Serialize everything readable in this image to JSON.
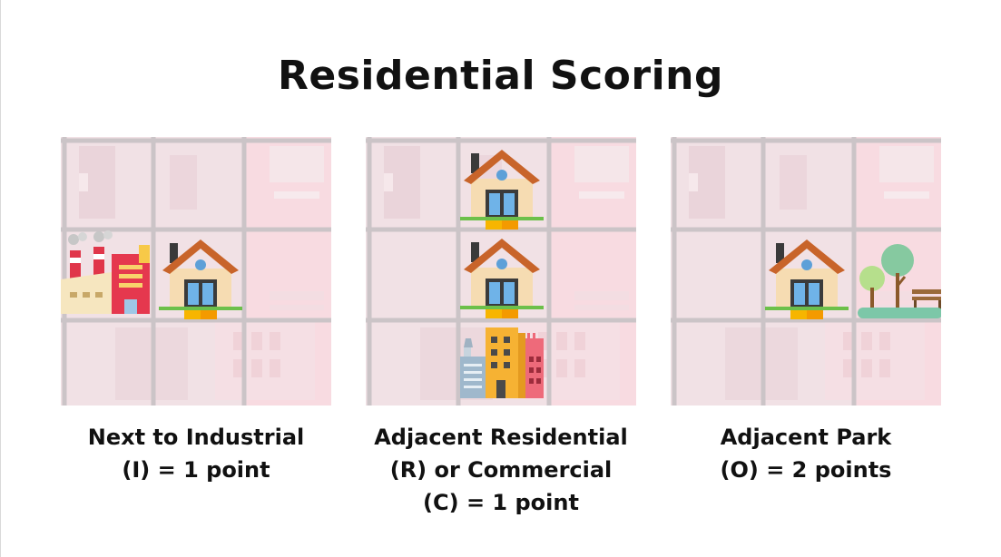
{
  "title": "Residential Scoring",
  "panels": [
    {
      "caption_lines": [
        "Next to Industrial",
        "(I) = 1 point"
      ],
      "icons": [
        "factory-icon",
        "house-icon"
      ]
    },
    {
      "caption_lines": [
        "Adjacent Residential",
        "(R) or Commercial",
        "(C) = 1 point"
      ],
      "icons": [
        "house-icon",
        "house-icon",
        "commercial-buildings-icon"
      ]
    },
    {
      "caption_lines": [
        "Adjacent Park",
        "(O) = 2 points"
      ],
      "icons": [
        "house-icon",
        "park-icon"
      ]
    }
  ],
  "colors": {
    "panel_bg": "#f3e3e6",
    "grid_line": "#c9c3c6",
    "roof": "#c8642a",
    "wall": "#f6dcb2",
    "window": "#5da0d8",
    "grass": "#6cc04a",
    "step": "#f7b500"
  }
}
